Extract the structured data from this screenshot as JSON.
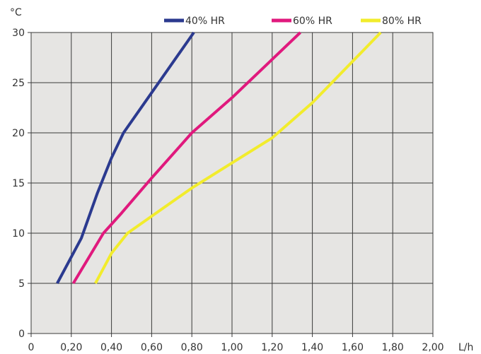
{
  "chart_data": {
    "type": "line",
    "title": "",
    "xlabel": "L/h",
    "ylabel": "°C",
    "xlim": [
      0,
      2.0
    ],
    "ylim": [
      0,
      30
    ],
    "x_ticks": [
      "0",
      "0,20",
      "0,40",
      "0,60",
      "0,80",
      "1,00",
      "1,20",
      "1,40",
      "1,60",
      "1,80",
      "2,00"
    ],
    "y_ticks": [
      "0",
      "5",
      "10",
      "15",
      "20",
      "25",
      "30"
    ],
    "grid": true,
    "legend_position": "top",
    "plot_background": "#e6e5e3",
    "series": [
      {
        "name": "40% HR",
        "color": "#2b3a8f",
        "points": [
          [
            0.13,
            5
          ],
          [
            0.25,
            9.5
          ],
          [
            0.33,
            14
          ],
          [
            0.4,
            17.5
          ],
          [
            0.46,
            20
          ],
          [
            0.6,
            24
          ],
          [
            0.81,
            30
          ]
        ]
      },
      {
        "name": "60% HR",
        "color": "#e0197d",
        "points": [
          [
            0.21,
            5
          ],
          [
            0.36,
            10
          ],
          [
            0.45,
            12
          ],
          [
            0.6,
            15.5
          ],
          [
            0.8,
            20
          ],
          [
            1.0,
            23.5
          ],
          [
            1.34,
            30
          ]
        ]
      },
      {
        "name": "80% HR",
        "color": "#f2ec2c",
        "points": [
          [
            0.32,
            5
          ],
          [
            0.4,
            8
          ],
          [
            0.48,
            10
          ],
          [
            0.8,
            14.5
          ],
          [
            1.0,
            17
          ],
          [
            1.2,
            19.5
          ],
          [
            1.4,
            23
          ],
          [
            1.74,
            30
          ]
        ]
      }
    ]
  }
}
